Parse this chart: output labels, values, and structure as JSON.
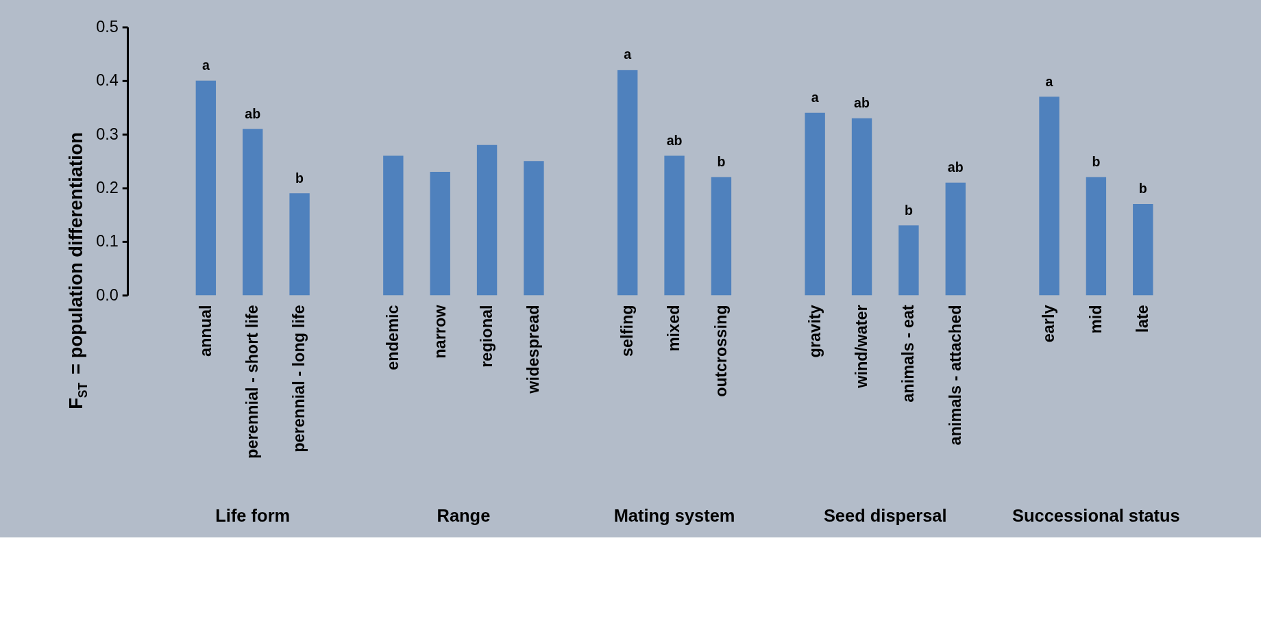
{
  "chart_data": {
    "type": "bar",
    "ylabel": "F$_{ST}$ = population differentiation",
    "categories": [
      "annual",
      "perennial - short life",
      "perennial - long life",
      null,
      "endemic",
      "narrow",
      "regional",
      "widespread",
      null,
      "selfing",
      "mixed",
      "outcrossing",
      null,
      "gravity",
      "wind/water",
      "animals - eat",
      "animals - attached",
      null,
      "early",
      "mid",
      "late"
    ],
    "values": [
      0.4,
      0.31,
      0.19,
      null,
      0.26,
      0.23,
      0.28,
      0.25,
      null,
      0.42,
      0.26,
      0.22,
      null,
      0.34,
      0.33,
      0.13,
      0.21,
      null,
      0.37,
      0.22,
      0.17
    ],
    "color": "#4f81bd",
    "ylim": [
      0,
      0.5
    ],
    "yticks": [
      {
        "value": 0,
        "label": "0.0"
      },
      {
        "value": 0.1,
        "label": "0.1"
      },
      {
        "value": 0.2,
        "label": "0.2"
      },
      {
        "value": 0.3,
        "label": "0.3"
      },
      {
        "value": 0.4,
        "label": "0.4"
      },
      {
        "value": 0.5,
        "label": "0.5"
      }
    ],
    "grid": false,
    "annotations": [
      "Life form",
      "Range",
      "Mating system",
      "Seed dispersal",
      "Successional status",
      {
        "text": "a",
        "x": "annual",
        "y": 0.4
      },
      {
        "text": "ab",
        "x": "perennial - short life",
        "y": 0.31
      },
      {
        "text": "b",
        "x": "perennial - long life",
        "y": 0.19
      },
      {
        "text": "a",
        "x": "selfing",
        "y": 0.42
      },
      {
        "text": "ab",
        "x": "mixed",
        "y": 0.26
      },
      {
        "text": "b",
        "x": "outcrossing",
        "y": 0.22
      },
      {
        "text": "a",
        "x": "gravity",
        "y": 0.34
      },
      {
        "text": "ab",
        "x": "wind/water",
        "y": 0.33
      },
      {
        "text": "b",
        "x": "animals - eat",
        "y": 0.13
      },
      {
        "text": "ab",
        "x": "animals - attached",
        "y": 0.21
      },
      {
        "text": "a",
        "x": "early",
        "y": 0.37
      },
      {
        "text": "b",
        "x": "mid",
        "y": 0.22
      },
      {
        "text": "b",
        "x": "late",
        "y": 0.17
      }
    ]
  }
}
